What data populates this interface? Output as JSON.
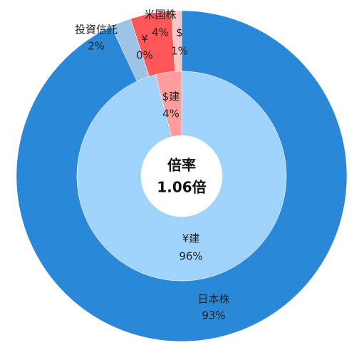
{
  "chart_data": {
    "type": "donut",
    "center_title": "倍率",
    "center_value": "1.06倍",
    "rings": [
      {
        "categories": [
          "日本株",
          "投資信託",
          "¥",
          "米国株",
          "$"
        ],
        "values": [
          93,
          2,
          0,
          4,
          1
        ],
        "value_labels": [
          "93%",
          "2%",
          "0%",
          "4%",
          "1%"
        ],
        "colors": [
          "#2b88d8",
          "#9dc3e6",
          "#bcd7ef",
          "#ff5757",
          "#f6c5c5"
        ]
      },
      {
        "categories": [
          "¥建",
          "$建"
        ],
        "values": [
          96,
          4
        ],
        "value_labels": [
          "96%",
          "4%"
        ],
        "colors": [
          "#a0d3fb",
          "#ff9c9c"
        ]
      }
    ]
  }
}
